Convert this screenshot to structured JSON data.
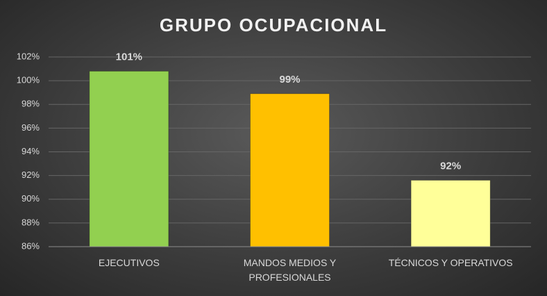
{
  "chart_data": {
    "type": "bar",
    "title": "GRUPO OCUPACIONAL",
    "categories": [
      "EJECUTIVOS",
      "MANDOS MEDIOS Y PROFESIONALES",
      "TÉCNICOS Y OPERATIVOS"
    ],
    "values": [
      100.8,
      98.9,
      91.6
    ],
    "value_labels": [
      "101%",
      "99%",
      "92%"
    ],
    "colors": [
      "#92d050",
      "#ffc000",
      "#ffff99"
    ],
    "ylim": [
      86,
      102
    ],
    "yticks": [
      {
        "value": 86,
        "label": "86%"
      },
      {
        "value": 88,
        "label": "88%"
      },
      {
        "value": 90,
        "label": "90%"
      },
      {
        "value": 92,
        "label": "92%"
      },
      {
        "value": 94,
        "label": "94%"
      },
      {
        "value": 96,
        "label": "96%"
      },
      {
        "value": 98,
        "label": "98%"
      },
      {
        "value": 100,
        "label": "100%"
      },
      {
        "value": 102,
        "label": "102%"
      }
    ],
    "grid": true
  }
}
